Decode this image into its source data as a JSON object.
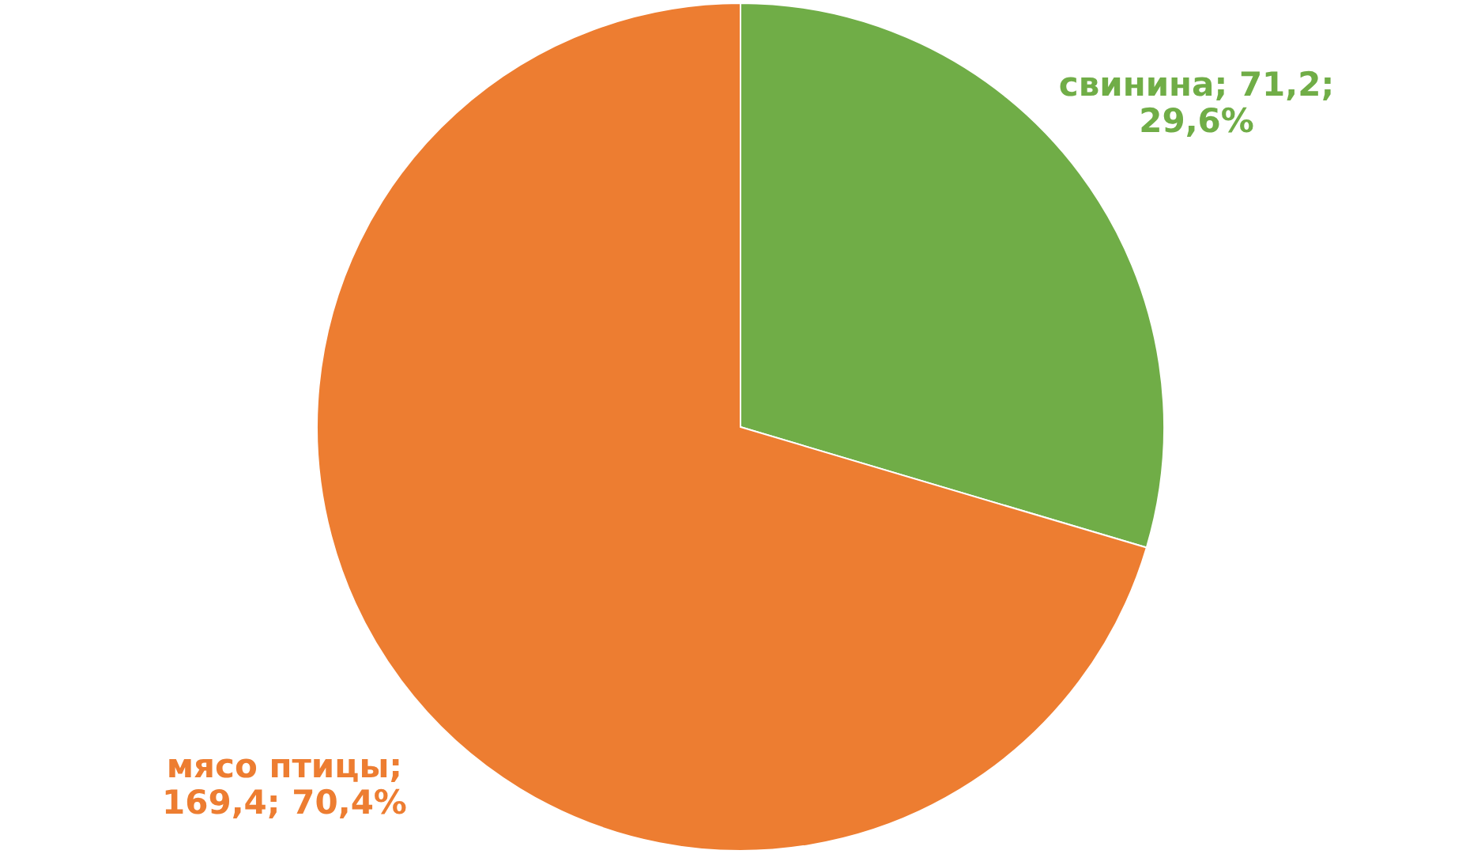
{
  "chart_data": {
    "type": "pie",
    "categories": [
      "свинина",
      "мясо птицы"
    ],
    "values": [
      71.2,
      169.4
    ],
    "colors": [
      "#70ad47",
      "#ed7d31"
    ],
    "value_labels": [
      "; 71,2; 29,6%",
      "; 169,4; 70,4%"
    ]
  }
}
